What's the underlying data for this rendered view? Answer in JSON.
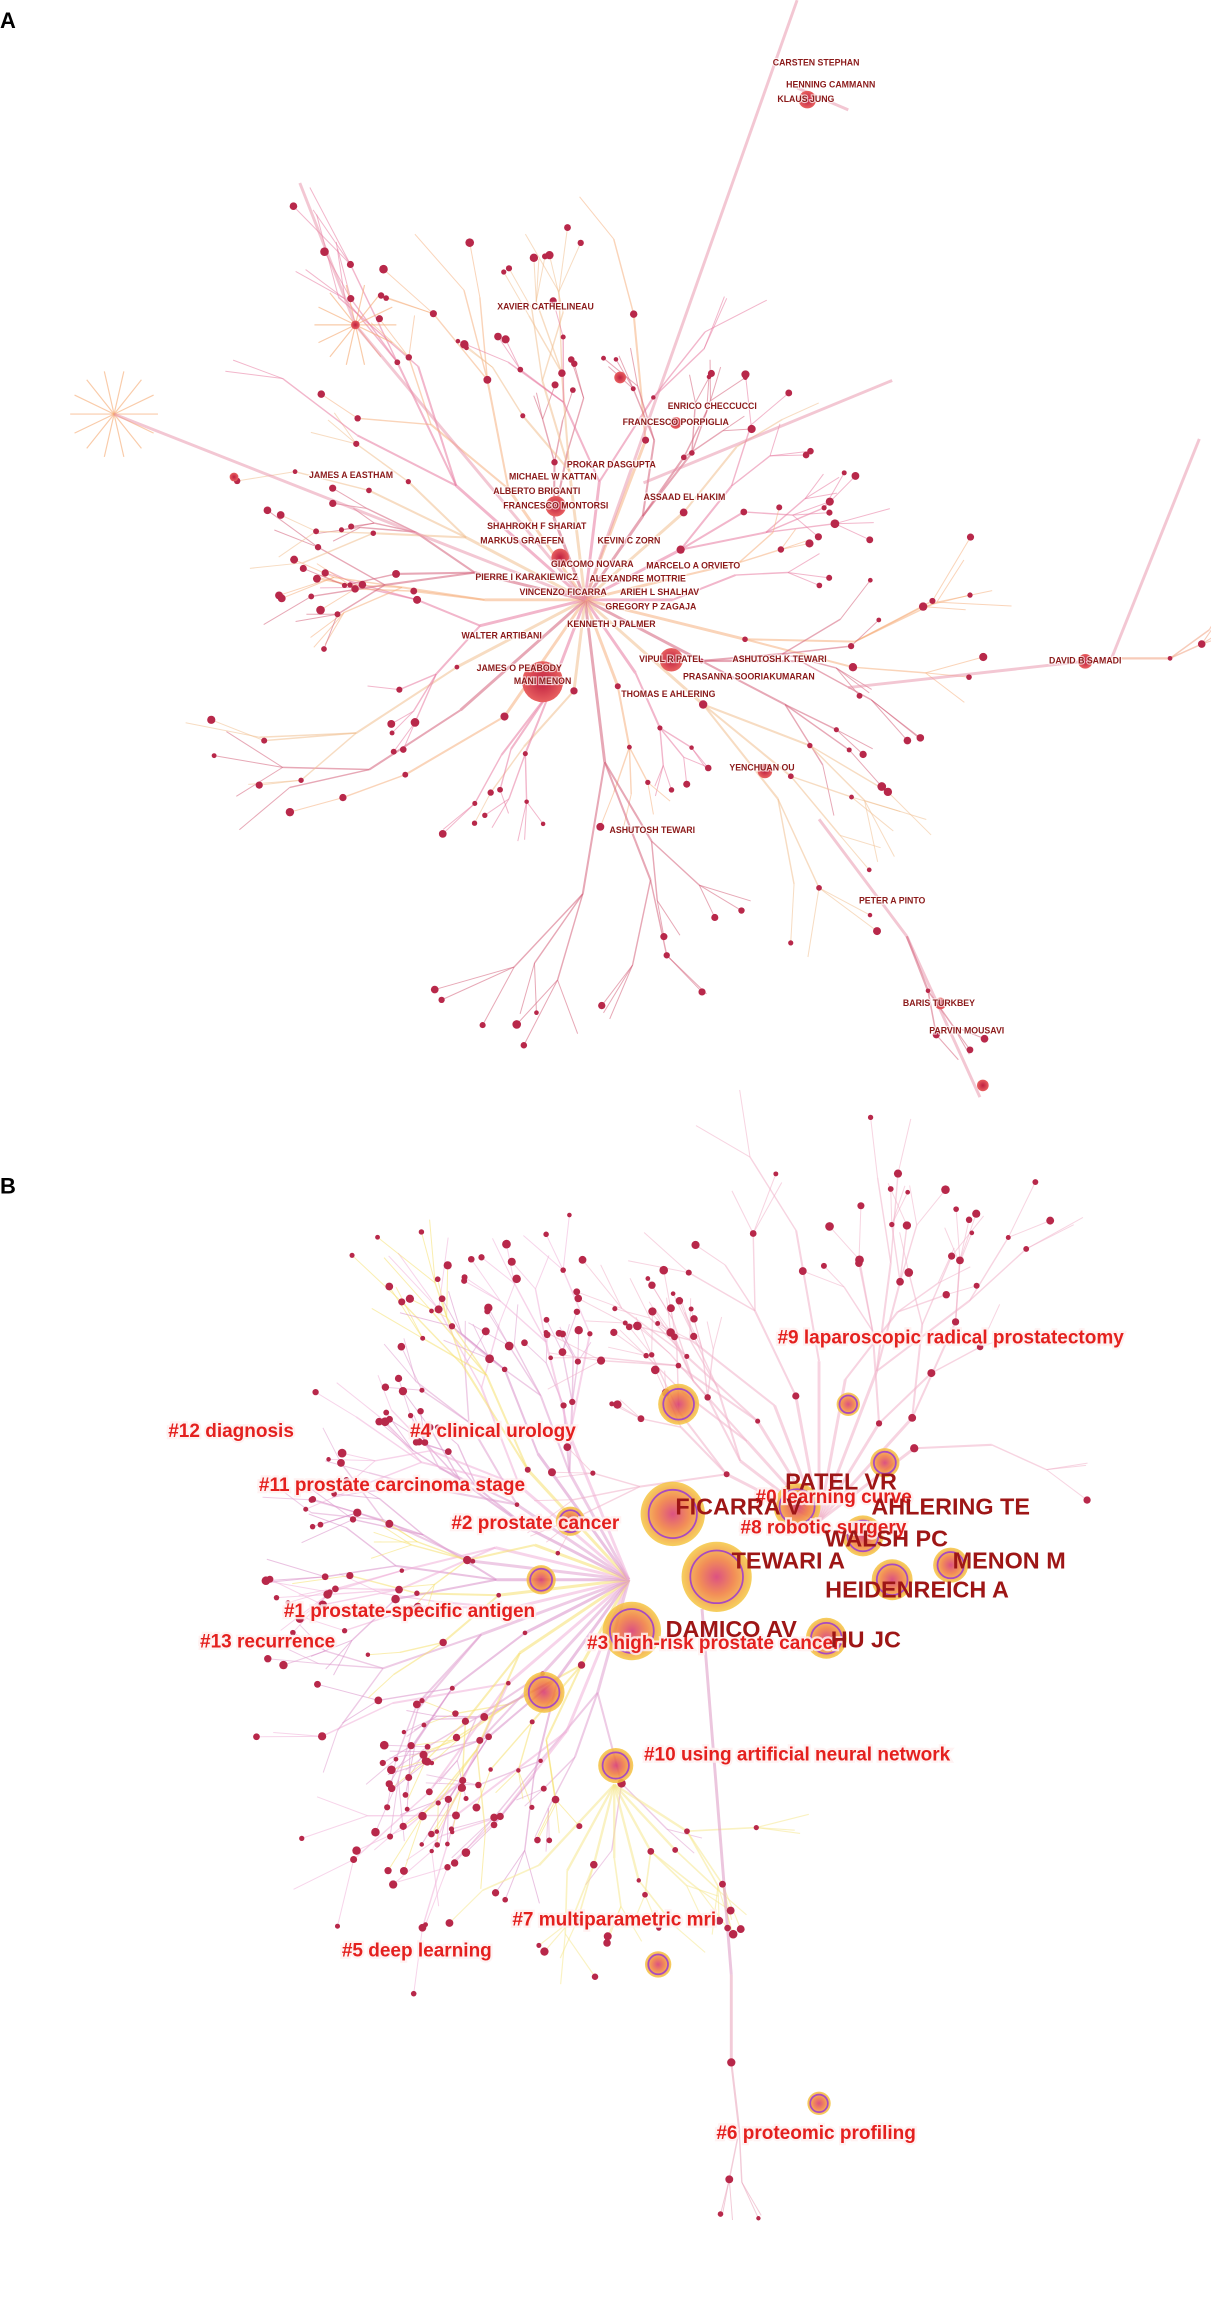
{
  "panels": [
    {
      "label": "A",
      "nodes": [
        {
          "label": "CARSTEN STEPHAN"
        },
        {
          "label": "HENNING CAMMANN"
        },
        {
          "label": "KLAUS JUNG"
        },
        {
          "label": "XAVIER CATHELINEAU"
        },
        {
          "label": "ENRICO CHECCUCCI"
        },
        {
          "label": "FRANCESCO PORPIGLIA"
        },
        {
          "label": "JAMES A EASTHAM"
        },
        {
          "label": "PROKAR DASGUPTA"
        },
        {
          "label": "MICHAEL W KATTAN"
        },
        {
          "label": "ASSAAD EL HAKIM"
        },
        {
          "label": "ALBERTO BRIGANTI"
        },
        {
          "label": "FRANCESCO MONTORSI"
        },
        {
          "label": "SHAHROKH F SHARIAT"
        },
        {
          "label": "KEVIN C ZORN"
        },
        {
          "label": "MARKUS GRAEFEN"
        },
        {
          "label": "GIACOMO NOVARA"
        },
        {
          "label": "MARCELO A ORVIETO"
        },
        {
          "label": "PIERRE I KARAKIEWICZ"
        },
        {
          "label": "ALEXANDRE MOTTRIE"
        },
        {
          "label": "VINCENZO FICARRA"
        },
        {
          "label": "ARIEH L SHALHAV"
        },
        {
          "label": "GREGORY P ZAGAJA"
        },
        {
          "label": "KENNETH J PALMER"
        },
        {
          "label": "WALTER ARTIBANI"
        },
        {
          "label": "VIPUL R PATEL"
        },
        {
          "label": "ASHUTOSH K TEWARI"
        },
        {
          "label": "DAVID B SAMADI"
        },
        {
          "label": "JAMES O PEABODY"
        },
        {
          "label": "PRASANNA SOORIAKUMARAN"
        },
        {
          "label": "MANI MENON"
        },
        {
          "label": "THOMAS E AHLERING"
        },
        {
          "label": "YENCHUAN OU"
        },
        {
          "label": "ASHUTOSH TEWARI"
        },
        {
          "label": "PETER A PINTO"
        },
        {
          "label": "BARIS TURKBEY"
        },
        {
          "label": "PARVIN MOUSAVI"
        }
      ]
    },
    {
      "label": "B",
      "clusters": [
        {
          "label": "#9 laparoscopic radical prostatectomy"
        },
        {
          "label": "#12 diagnosis"
        },
        {
          "label": "#4 clinical urology"
        },
        {
          "label": "#11 prostate carcinoma stage"
        },
        {
          "label": "#0 learning curve"
        },
        {
          "label": "#2 prostate cancer"
        },
        {
          "label": "#8 robotic surgery"
        },
        {
          "label": "#1 prostate-specific antigen"
        },
        {
          "label": "#13 recurrence"
        },
        {
          "label": "#3 high-risk prostate cancer"
        },
        {
          "label": "#10 using artificial neural network"
        },
        {
          "label": "#7 multiparametric mri"
        },
        {
          "label": "#5 deep learning"
        },
        {
          "label": "#6 proteomic profiling"
        }
      ],
      "references": [
        {
          "label": "PATEL VR"
        },
        {
          "label": "FICARRA V"
        },
        {
          "label": "AHLERING TE"
        },
        {
          "label": "WALSH PC"
        },
        {
          "label": "TEWARI A"
        },
        {
          "label": "MENON M"
        },
        {
          "label": "HEIDENREICH A"
        },
        {
          "label": "DAMICO AV"
        },
        {
          "label": "HU JC"
        }
      ]
    }
  ]
}
